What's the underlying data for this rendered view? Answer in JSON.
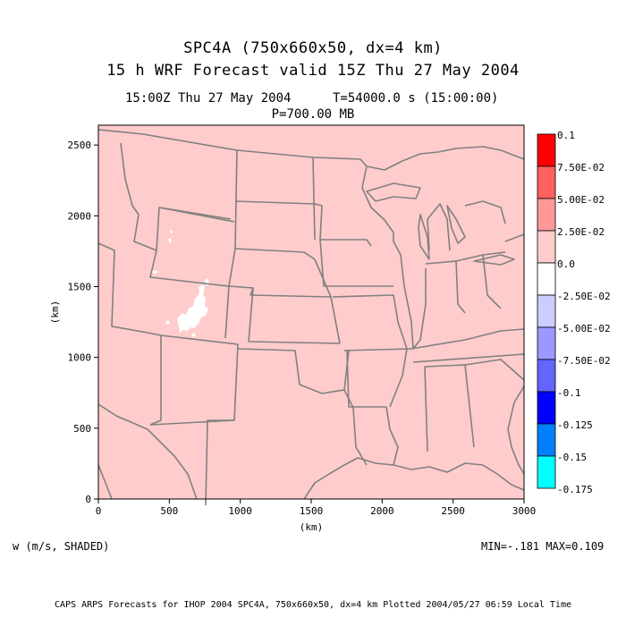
{
  "header": {
    "title_line1": "SPC4A (750x660x50, dx=4 km)",
    "title_line2": "15 h WRF Forecast valid 15Z Thu 27 May 2004",
    "valid_time": "15:00Z Thu 27 May 2004",
    "model_time": "T=54000.0 s (15:00:00)",
    "level": "P=700.00 MB"
  },
  "chart_data": {
    "type": "heatmap",
    "xlabel": "(km)",
    "ylabel": "(km)",
    "xlim": [
      0,
      3000
    ],
    "ylim": [
      0,
      2640
    ],
    "x_ticks": [
      0,
      500,
      1000,
      1500,
      2000,
      2500,
      3000
    ],
    "y_ticks": [
      0,
      500,
      1000,
      1500,
      2000,
      2500
    ],
    "dominant_value_range": [
      0.0,
      0.025
    ],
    "colorbar": {
      "bins": [
        {
          "label": "0.1",
          "color": "#ff0000"
        },
        {
          "label": "7.50E-02",
          "color": "#ff6060"
        },
        {
          "label": "5.00E-02",
          "color": "#ff9999"
        },
        {
          "label": "2.50E-02",
          "color": "#ffcccc"
        },
        {
          "label": "0.0",
          "color": "#ffffff"
        },
        {
          "label": "-2.50E-02",
          "color": "#ccccff"
        },
        {
          "label": "-5.00E-02",
          "color": "#9999ff"
        },
        {
          "label": "-7.50E-02",
          "color": "#6464ff"
        },
        {
          "label": "-0.1",
          "color": "#0000ff"
        },
        {
          "label": "-0.125",
          "color": "#0080ff"
        },
        {
          "label": "-0.15",
          "color": "#00ffff"
        }
      ],
      "bottom_label": "-0.175"
    },
    "field_fill_color": "#ffcccc",
    "boundary_color": "#808080"
  },
  "footer": {
    "variable": "w (m/s, SHADED)",
    "minmax": "MIN=-.181 MAX=0.109",
    "credit": "CAPS ARPS Forecasts for IHOP 2004  SPC4A, 750x660x50, dx=4 km  Plotted 2004/05/27 06:59 Local Time"
  }
}
